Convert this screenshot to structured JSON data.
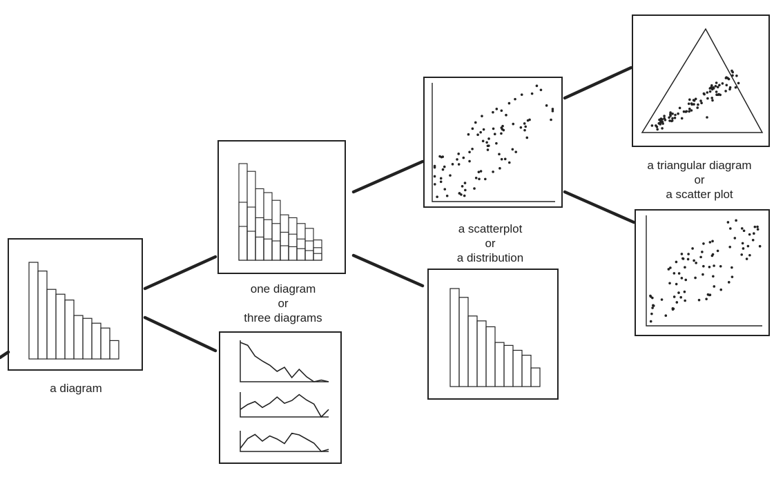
{
  "colors": {
    "ink": "#222222",
    "paper": "#ffffff"
  },
  "nodes": {
    "diagram": {
      "label": [
        "a diagram"
      ],
      "kind": "bars",
      "bars": [
        100,
        91,
        72,
        67,
        61,
        45,
        42,
        37,
        32,
        19
      ]
    },
    "one_or_three": {
      "label": [
        "one diagram",
        "or",
        "three diagrams"
      ],
      "kind": "stacked-bars",
      "bars": [
        [
          100,
          60,
          35
        ],
        [
          92,
          55,
          30
        ],
        [
          74,
          44,
          24
        ],
        [
          70,
          42,
          22
        ],
        [
          62,
          38,
          20
        ],
        [
          47,
          29,
          15
        ],
        [
          44,
          27,
          14
        ],
        [
          38,
          22,
          12
        ],
        [
          33,
          20,
          10
        ],
        [
          21,
          13,
          7
        ]
      ]
    },
    "three_lines": {
      "label": [],
      "kind": "three-lines",
      "series": [
        [
          95,
          88,
          62,
          50,
          40,
          25,
          35,
          10,
          30,
          12,
          0,
          4,
          0
        ],
        [
          30,
          50,
          62,
          38,
          55,
          80,
          55,
          66,
          90,
          68,
          52,
          0,
          30
        ],
        [
          15,
          62,
          82,
          50,
          75,
          60,
          38,
          88,
          80,
          60,
          40,
          0,
          10
        ]
      ]
    },
    "scatter": {
      "label": [
        "a scatterplot",
        "or",
        "a distribution"
      ],
      "kind": "scatter"
    },
    "distribution": {
      "label": [],
      "kind": "bars",
      "bars": [
        100,
        91,
        72,
        67,
        61,
        45,
        42,
        37,
        32,
        19
      ]
    },
    "triangular": {
      "label": [
        "a triangular diagram",
        "or",
        "a scatter plot"
      ],
      "kind": "triangle"
    },
    "scatter2": {
      "label": [],
      "kind": "scatter"
    }
  }
}
